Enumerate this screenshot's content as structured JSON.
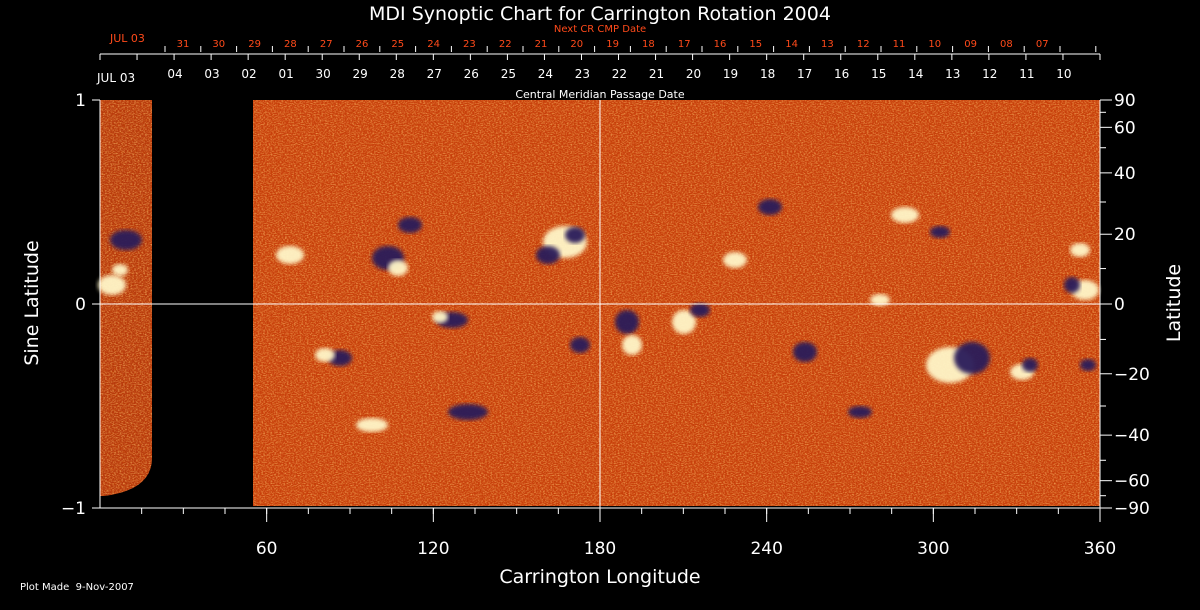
{
  "chart_data": {
    "type": "heatmap",
    "title": "MDI Synoptic Chart for Carrington Rotation 2004",
    "xlabel": "Carrington Longitude",
    "ylabel_left": "Sine Latitude",
    "ylabel_right": "Latitude",
    "xlim": [
      0,
      360
    ],
    "ylim": [
      -1,
      1
    ],
    "x_ticks": [
      60,
      120,
      180,
      240,
      300,
      360
    ],
    "y_ticks_left": [
      {
        "value": 1,
        "label": "1"
      },
      {
        "value": 0,
        "label": "0"
      },
      {
        "value": -1,
        "label": "−1"
      }
    ],
    "y_ticks_right": [
      {
        "deg": 90,
        "label": "90"
      },
      {
        "deg": 60,
        "label": "60"
      },
      {
        "deg": 40,
        "label": "40"
      },
      {
        "deg": 20,
        "label": "20"
      },
      {
        "deg": 0,
        "label": "0"
      },
      {
        "deg": -20,
        "label": "−20"
      },
      {
        "deg": -40,
        "label": "−40"
      },
      {
        "deg": -60,
        "label": "−60"
      },
      {
        "deg": -90,
        "label": "−90"
      }
    ],
    "cmp_axis_label": "Central Meridian Passage Date",
    "cmp_start_label": "JUL 03",
    "cmp_dates": [
      "04",
      "03",
      "02",
      "01",
      "30",
      "29",
      "28",
      "27",
      "26",
      "25",
      "24",
      "23",
      "22",
      "21",
      "20",
      "19",
      "18",
      "17",
      "16",
      "15",
      "14",
      "13",
      "12",
      "11",
      "10"
    ],
    "next_cr_axis_label": "Next CR CMP Date",
    "next_cr_start_label": "JUL 03",
    "next_cr_dates": [
      "31",
      "30",
      "29",
      "28",
      "27",
      "26",
      "25",
      "24",
      "23",
      "22",
      "21",
      "20",
      "19",
      "18",
      "17",
      "16",
      "15",
      "14",
      "13",
      "12",
      "11",
      "10",
      "09",
      "08",
      "07"
    ],
    "data_gap_longitude": [
      22,
      55
    ],
    "footer": "Plot Made  9-Nov-2007",
    "colors": {
      "background": "#000000",
      "map_base": "#c83a0a",
      "positive_polarity": "#fff6c8",
      "negative_polarity": "#2a1a5a",
      "next_cr_labels": "#ff4a1a",
      "axis": "#ffffff"
    }
  }
}
